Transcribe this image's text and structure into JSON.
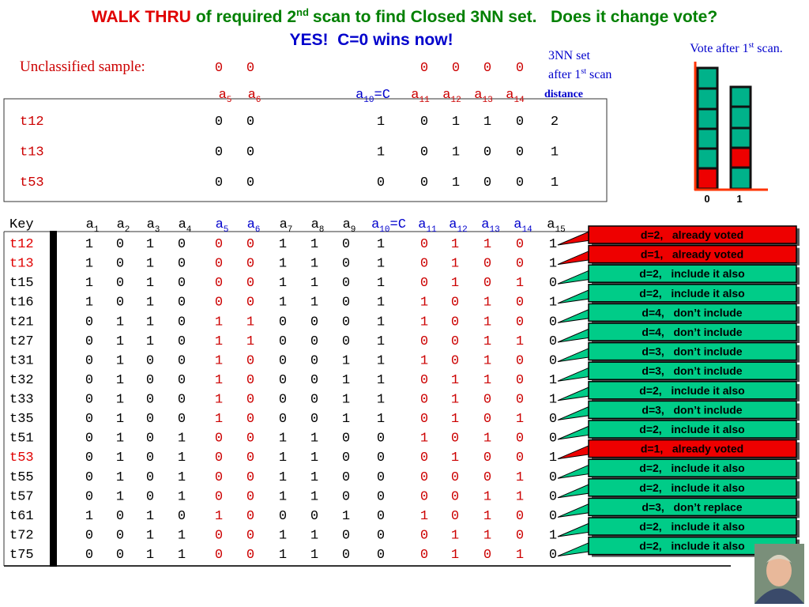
{
  "title": {
    "lead": "WALK THRU",
    "text": "of required 2",
    "sup": "nd",
    "rest": "scan to find Closed 3NN set.   Does it change vote?",
    "line2": "YES!  C=0 wins now!"
  },
  "sample": {
    "label": "Unclassified sample:",
    "values": [
      0,
      0,
      0,
      0,
      0,
      0
    ]
  },
  "nn_set": {
    "caption1": "3NN set",
    "caption2": "after 1",
    "caption_sup": "st",
    "caption_rest": "scan",
    "distance_label": "distance",
    "columns": [
      {
        "base": "a",
        "sub": "5"
      },
      {
        "base": "a",
        "sub": "6"
      },
      {
        "base": "a",
        "sub": "10",
        "suffix": "=C"
      },
      {
        "base": "a",
        "sub": "11"
      },
      {
        "base": "a",
        "sub": "12"
      },
      {
        "base": "a",
        "sub": "13"
      },
      {
        "base": "a",
        "sub": "14"
      }
    ],
    "rows": [
      {
        "key": "t12",
        "values": [
          0,
          0,
          1,
          0,
          1,
          1,
          0,
          2
        ]
      },
      {
        "key": "t13",
        "values": [
          0,
          0,
          1,
          0,
          1,
          0,
          0,
          1
        ]
      },
      {
        "key": "t53",
        "values": [
          0,
          0,
          0,
          0,
          1,
          0,
          0,
          1
        ]
      }
    ]
  },
  "vote": {
    "title": "Vote after 1",
    "sup": "st",
    "rest": "scan.",
    "labels": [
      "0",
      "1"
    ]
  },
  "table": {
    "key_header": "Key",
    "columns": [
      {
        "base": "a",
        "sub": "1"
      },
      {
        "base": "a",
        "sub": "2"
      },
      {
        "base": "a",
        "sub": "3"
      },
      {
        "base": "a",
        "sub": "4"
      },
      {
        "base": "a",
        "sub": "5"
      },
      {
        "base": "a",
        "sub": "6"
      },
      {
        "base": "a",
        "sub": "7"
      },
      {
        "base": "a",
        "sub": "8"
      },
      {
        "base": "a",
        "sub": "9"
      },
      {
        "base": "a",
        "sub": "10",
        "suffix": "=C"
      },
      {
        "base": "a",
        "sub": "11"
      },
      {
        "base": "a",
        "sub": "12"
      },
      {
        "base": "a",
        "sub": "13"
      },
      {
        "base": "a",
        "sub": "14"
      },
      {
        "base": "a",
        "sub": "15"
      }
    ],
    "rows": [
      {
        "key": "t12",
        "color": "#e00000",
        "values": [
          1,
          0,
          1,
          0,
          0,
          0,
          1,
          1,
          0,
          1,
          0,
          1,
          1,
          0,
          1
        ]
      },
      {
        "key": "t13",
        "color": "#e00000",
        "values": [
          1,
          0,
          1,
          0,
          0,
          0,
          1,
          1,
          0,
          1,
          0,
          1,
          0,
          0,
          1
        ]
      },
      {
        "key": "t15",
        "color": "#000000",
        "values": [
          1,
          0,
          1,
          0,
          0,
          0,
          1,
          1,
          0,
          1,
          0,
          1,
          0,
          1,
          0
        ]
      },
      {
        "key": "t16",
        "color": "#000000",
        "values": [
          1,
          0,
          1,
          0,
          0,
          0,
          1,
          1,
          0,
          1,
          1,
          0,
          1,
          0,
          1
        ]
      },
      {
        "key": "t21",
        "color": "#000000",
        "values": [
          0,
          1,
          1,
          0,
          1,
          1,
          0,
          0,
          0,
          1,
          1,
          0,
          1,
          0,
          0
        ]
      },
      {
        "key": "t27",
        "color": "#000000",
        "values": [
          0,
          1,
          1,
          0,
          1,
          1,
          0,
          0,
          0,
          1,
          0,
          0,
          1,
          1,
          0
        ]
      },
      {
        "key": "t31",
        "color": "#000000",
        "values": [
          0,
          1,
          0,
          0,
          1,
          0,
          0,
          0,
          1,
          1,
          1,
          0,
          1,
          0,
          0
        ]
      },
      {
        "key": "t32",
        "color": "#000000",
        "values": [
          0,
          1,
          0,
          0,
          1,
          0,
          0,
          0,
          1,
          1,
          0,
          1,
          1,
          0,
          1
        ]
      },
      {
        "key": "t33",
        "color": "#000000",
        "values": [
          0,
          1,
          0,
          0,
          1,
          0,
          0,
          0,
          1,
          1,
          0,
          1,
          0,
          0,
          1
        ]
      },
      {
        "key": "t35",
        "color": "#000000",
        "values": [
          0,
          1,
          0,
          0,
          1,
          0,
          0,
          0,
          1,
          1,
          0,
          1,
          0,
          1,
          0
        ]
      },
      {
        "key": "t51",
        "color": "#000000",
        "values": [
          0,
          1,
          0,
          1,
          0,
          0,
          1,
          1,
          0,
          0,
          1,
          0,
          1,
          0,
          0
        ]
      },
      {
        "key": "t53",
        "color": "#e00000",
        "values": [
          0,
          1,
          0,
          1,
          0,
          0,
          1,
          1,
          0,
          0,
          0,
          1,
          0,
          0,
          1
        ]
      },
      {
        "key": "t55",
        "color": "#000000",
        "values": [
          0,
          1,
          0,
          1,
          0,
          0,
          1,
          1,
          0,
          0,
          0,
          0,
          0,
          1,
          0
        ]
      },
      {
        "key": "t57",
        "color": "#000000",
        "values": [
          0,
          1,
          0,
          1,
          0,
          0,
          1,
          1,
          0,
          0,
          0,
          0,
          1,
          1,
          0
        ]
      },
      {
        "key": "t61",
        "color": "#000000",
        "values": [
          1,
          0,
          1,
          0,
          1,
          0,
          0,
          0,
          1,
          0,
          1,
          0,
          1,
          0,
          0
        ]
      },
      {
        "key": "t72",
        "color": "#000000",
        "values": [
          0,
          0,
          1,
          1,
          0,
          0,
          1,
          1,
          0,
          0,
          0,
          1,
          1,
          0,
          1
        ]
      },
      {
        "key": "t75",
        "color": "#000000",
        "values": [
          0,
          0,
          1,
          1,
          0,
          0,
          1,
          1,
          0,
          0,
          0,
          1,
          0,
          1,
          0
        ]
      }
    ],
    "callouts": [
      {
        "text": "d=2,   already voted",
        "color": "#ee0000"
      },
      {
        "text": "d=1,   already voted",
        "color": "#ee0000"
      },
      {
        "text": "d=2,   include it also",
        "color": "#00cc88"
      },
      {
        "text": "d=2,   include it also",
        "color": "#00cc88"
      },
      {
        "text": "d=4,   don’t include",
        "color": "#00cc88"
      },
      {
        "text": "d=4,   don’t include",
        "color": "#00cc88"
      },
      {
        "text": "d=3,   don’t include",
        "color": "#00cc88"
      },
      {
        "text": "d=3,   don’t include",
        "color": "#00cc88"
      },
      {
        "text": "d=2,   include it also",
        "color": "#00cc88"
      },
      {
        "text": "d=3,   don’t include",
        "color": "#00cc88"
      },
      {
        "text": "d=2,   include it also",
        "color": "#00cc88"
      },
      {
        "text": "d=1,   already voted",
        "color": "#ee0000"
      },
      {
        "text": "d=2,   include it also",
        "color": "#00cc88"
      },
      {
        "text": "d=2,   include it also",
        "color": "#00cc88"
      },
      {
        "text": "d=3,   don’t replace",
        "color": "#00cc88"
      },
      {
        "text": "d=2,   include it also",
        "color": "#00cc88"
      },
      {
        "text": "d=2,   include it also",
        "color": "#00cc88"
      }
    ]
  }
}
